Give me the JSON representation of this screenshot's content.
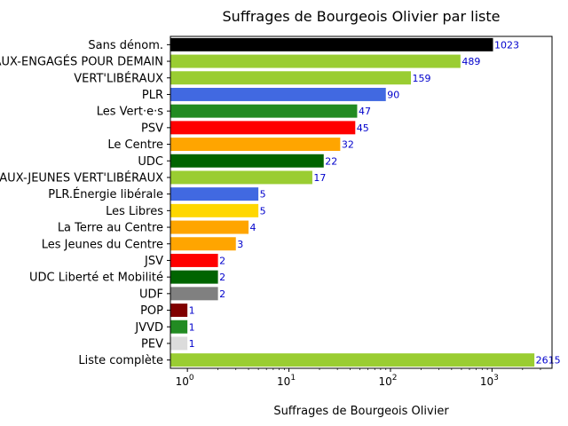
{
  "chart_data": {
    "type": "bar",
    "orientation": "horizontal",
    "title": "Suffrages de Bourgeois Olivier par liste",
    "xlabel": "Suffrages de Bourgeois Olivier",
    "ylabel": "",
    "xscale": "log",
    "xlim": [
      0.68,
      3900
    ],
    "x_ticks": [
      {
        "value": 1,
        "base": "10",
        "exp": "0"
      },
      {
        "value": 10,
        "base": "10",
        "exp": "1"
      },
      {
        "value": 100,
        "base": "10",
        "exp": "2"
      },
      {
        "value": 1000,
        "base": "10",
        "exp": "3"
      }
    ],
    "value_label_color": "#0000cc",
    "grid": false,
    "bars": [
      {
        "label": "Sans dénom.",
        "value": 1023,
        "color": "#000000"
      },
      {
        "label": "VERT'LIBÉRAUX-ENGAGÉS POUR DEMAIN",
        "value": 489,
        "color": "#9acd32"
      },
      {
        "label": "VERT'LIBÉRAUX",
        "value": 159,
        "color": "#9acd32"
      },
      {
        "label": "PLR",
        "value": 90,
        "color": "#4169e1"
      },
      {
        "label": "Les Vert·e·s",
        "value": 47,
        "color": "#228b22"
      },
      {
        "label": "PSV",
        "value": 45,
        "color": "#ff0000"
      },
      {
        "label": "Le Centre",
        "value": 32,
        "color": "#ffa500"
      },
      {
        "label": "UDC",
        "value": 22,
        "color": "#006400"
      },
      {
        "label": "VERT'LIBÉRAUX-JEUNES VERT'LIBÉRAUX",
        "value": 17,
        "color": "#9acd32"
      },
      {
        "label": "PLR.Énergie libérale",
        "value": 5,
        "color": "#4169e1"
      },
      {
        "label": "Les Libres",
        "value": 5,
        "color": "#ffd700"
      },
      {
        "label": "La Terre au Centre",
        "value": 4,
        "color": "#ffa500"
      },
      {
        "label": "Les Jeunes du Centre",
        "value": 3,
        "color": "#ffa500"
      },
      {
        "label": "JSV",
        "value": 2,
        "color": "#ff0000"
      },
      {
        "label": "UDC Liberté et Mobilité",
        "value": 2,
        "color": "#006400"
      },
      {
        "label": "UDF",
        "value": 2,
        "color": "#808080"
      },
      {
        "label": "POP",
        "value": 1,
        "color": "#800000"
      },
      {
        "label": "JVVD",
        "value": 1,
        "color": "#228b22"
      },
      {
        "label": "PEV",
        "value": 1,
        "color": "#dcdcdc"
      },
      {
        "label": "Liste complète",
        "value": 2615,
        "color": "#9acd32"
      }
    ]
  }
}
